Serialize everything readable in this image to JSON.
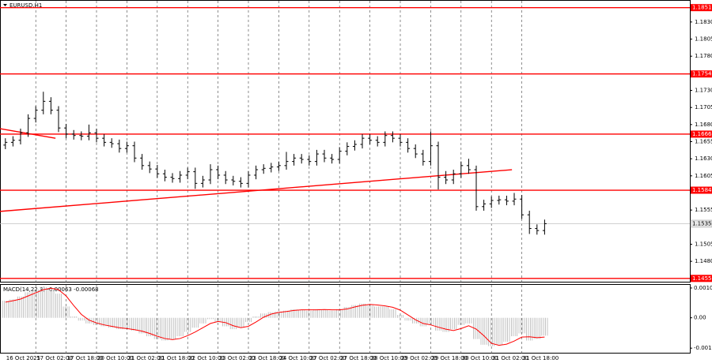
{
  "chart_data": [
    {
      "type": "candlestick",
      "title": "EURUSD,H1",
      "color": "#000000",
      "categories": [
        "16 Oct 2025",
        null,
        null,
        null,
        "17 Oct 02:00",
        null,
        null,
        null,
        "17 Oct 18:00",
        null,
        null,
        null,
        "20 Oct 10:00",
        null,
        null,
        null,
        "21 Oct 02:00",
        null,
        null,
        null,
        "21 Oct 18:00",
        null,
        null,
        null,
        "22 Oct 10:00",
        null,
        null,
        null,
        "23 Oct 02:00",
        null,
        null,
        null,
        "23 Oct 18:00",
        null,
        null,
        null,
        "24 Oct 10:00",
        null,
        null,
        null,
        "27 Oct 02:00",
        null,
        null,
        null,
        "27 Oct 18:00",
        null,
        null,
        null,
        "28 Oct 10:00",
        null,
        null,
        null,
        "29 Oct 02:00",
        null,
        null,
        null,
        "29 Oct 18:00",
        null,
        null,
        null,
        "30 Oct 10:00",
        null,
        null,
        null,
        "31 Oct 02:00",
        null,
        null,
        null,
        "31 Oct 18:00",
        null,
        null,
        null
      ],
      "open": [
        1.165,
        1.1654,
        1.1657,
        1.1668,
        1.1689,
        1.1701,
        1.1714,
        1.1701,
        1.1675,
        1.1666,
        1.1664,
        1.1663,
        1.1668,
        1.166,
        1.1654,
        1.1652,
        1.1645,
        1.1649,
        1.1631,
        1.162,
        1.1615,
        1.1608,
        1.1603,
        1.1601,
        1.1606,
        1.1611,
        1.1594,
        1.1599,
        1.1614,
        1.1606,
        1.1599,
        1.1597,
        1.1594,
        1.1606,
        1.1614,
        1.1616,
        1.1618,
        1.162,
        1.1626,
        1.1631,
        1.1629,
        1.1626,
        1.1637,
        1.1631,
        1.1629,
        1.1641,
        1.1648,
        1.1651,
        1.166,
        1.1657,
        1.1654,
        1.1664,
        1.166,
        1.1654,
        1.1645,
        1.1637,
        1.1626,
        1.1649,
        1.1603,
        1.1599,
        1.1608,
        1.162,
        1.1614,
        1.156,
        1.1564,
        1.1569,
        1.157,
        1.1568,
        1.1571,
        1.1548,
        1.1528,
        1.1525
      ],
      "high": [
        1.166,
        1.1663,
        1.1674,
        1.1695,
        1.1707,
        1.1728,
        1.172,
        1.1707,
        1.1681,
        1.1672,
        1.167,
        1.168,
        1.1674,
        1.1666,
        1.166,
        1.1658,
        1.1655,
        1.1655,
        1.1637,
        1.1626,
        1.1621,
        1.1614,
        1.1609,
        1.1612,
        1.1617,
        1.1617,
        1.1605,
        1.1622,
        1.162,
        1.1612,
        1.1605,
        1.1603,
        1.1612,
        1.162,
        1.1622,
        1.1624,
        1.1626,
        1.164,
        1.1637,
        1.1637,
        1.1635,
        1.1643,
        1.1643,
        1.1637,
        1.1647,
        1.1654,
        1.1657,
        1.1666,
        1.1666,
        1.1663,
        1.167,
        1.167,
        1.1666,
        1.166,
        1.1651,
        1.1643,
        1.167,
        1.1655,
        1.1612,
        1.1614,
        1.1626,
        1.163,
        1.162,
        1.157,
        1.1575,
        1.1576,
        1.1576,
        1.158,
        1.1577,
        1.1554,
        1.1534,
        1.1541
      ],
      "low": [
        1.1644,
        1.1648,
        1.1651,
        1.1662,
        1.1683,
        1.1695,
        1.1695,
        1.1669,
        1.166,
        1.1658,
        1.1657,
        1.1657,
        1.1654,
        1.1648,
        1.1646,
        1.1639,
        1.1639,
        1.1625,
        1.1614,
        1.1609,
        1.1602,
        1.1597,
        1.1595,
        1.1595,
        1.16,
        1.1586,
        1.1588,
        1.1593,
        1.16,
        1.1593,
        1.1591,
        1.1588,
        1.1588,
        1.16,
        1.1608,
        1.161,
        1.1612,
        1.1614,
        1.162,
        1.1623,
        1.162,
        1.162,
        1.1625,
        1.1623,
        1.1623,
        1.1635,
        1.1642,
        1.1645,
        1.1651,
        1.1648,
        1.1648,
        1.1654,
        1.1648,
        1.1639,
        1.1631,
        1.162,
        1.162,
        1.1585,
        1.1593,
        1.1593,
        1.1602,
        1.1608,
        1.1554,
        1.1554,
        1.1558,
        1.1563,
        1.1562,
        1.1562,
        1.1542,
        1.152,
        1.1519,
        1.1519
      ],
      "close": [
        1.1654,
        1.1657,
        1.1668,
        1.1689,
        1.1701,
        1.1714,
        1.1701,
        1.1675,
        1.1666,
        1.1664,
        1.1663,
        1.1668,
        1.166,
        1.1654,
        1.1652,
        1.1645,
        1.1649,
        1.1631,
        1.162,
        1.1615,
        1.1608,
        1.1603,
        1.1601,
        1.1606,
        1.1611,
        1.1594,
        1.1599,
        1.1614,
        1.1606,
        1.1599,
        1.1597,
        1.1594,
        1.1606,
        1.1614,
        1.1616,
        1.1618,
        1.162,
        1.1626,
        1.1631,
        1.1629,
        1.1626,
        1.1637,
        1.1631,
        1.1629,
        1.1641,
        1.1648,
        1.1651,
        1.166,
        1.1657,
        1.1654,
        1.1664,
        1.166,
        1.1654,
        1.1645,
        1.1637,
        1.1626,
        1.1649,
        1.1603,
        1.1599,
        1.1608,
        1.162,
        1.1614,
        1.156,
        1.1564,
        1.1569,
        1.157,
        1.1568,
        1.1571,
        1.1548,
        1.1528,
        1.1525,
        1.1535
      ],
      "ylim": [
        1.1449,
        1.1861
      ],
      "yticks": [
        {
          "value": 1.183,
          "label": "1.1830"
        },
        1.1805,
        {
          "value": 1.178,
          "label": "1.1780"
        },
        {
          "value": 1.173,
          "label": "1.1730"
        },
        1.1705,
        {
          "value": 1.168,
          "label": "1.1680"
        },
        1.1655,
        {
          "value": 1.163,
          "label": "1.1630"
        },
        1.1605,
        1.1555,
        1.1505,
        {
          "value": 1.148,
          "label": "1.1480"
        }
      ],
      "levels": [
        1.1851,
        1.1754,
        1.1666,
        1.1584,
        1.1455
      ],
      "level_color": "#ff0000",
      "current_price": 1.1535,
      "trendlines": [
        {
          "x": [
            -0.7,
            6.6
          ],
          "y": [
            1.1674,
            1.166
          ]
        },
        {
          "x": [
            -0.7,
            66.7
          ],
          "y": [
            1.1553,
            1.1614
          ]
        }
      ],
      "grid": true
    },
    {
      "type": "macd",
      "title": "MACD(14,22,3)",
      "last_values": [
        -0.00063,
        -0.00068
      ],
      "color": "#b4b4b4",
      "signal_color": "#ff0000",
      "values": [
        0.0006,
        0.00065,
        0.00075,
        0.0009,
        0.001,
        0.00108,
        0.00105,
        0.00085,
        0.0004,
        5e-05,
        -0.0001,
        -0.0002,
        -0.00025,
        -0.0003,
        -0.00035,
        -0.0004,
        -0.0004,
        -0.00045,
        -0.00055,
        -0.00065,
        -0.00075,
        -0.0008,
        -0.00075,
        -0.00065,
        -0.0005,
        -0.00035,
        -0.0002,
        -5e-05,
        -0.00015,
        -0.0003,
        -0.0004,
        -0.00035,
        -0.00015,
        5e-05,
        0.00015,
        0.0002,
        0.00022,
        0.00025,
        0.0003,
        0.00028,
        0.00025,
        0.0003,
        0.00028,
        0.00025,
        0.0003,
        0.00038,
        0.00045,
        0.0005,
        0.00045,
        0.0004,
        0.0004,
        0.0003,
        0.0001,
        -0.0001,
        -0.0002,
        -0.0003,
        -0.00025,
        -0.00045,
        -0.0005,
        -0.0004,
        -0.00025,
        -0.0002,
        -0.00075,
        -0.00095,
        -0.001,
        -0.00095,
        -0.00085,
        -0.00065,
        -0.00055,
        -0.0008,
        -0.00075,
        -0.00063
      ],
      "signal": [
        0.00055,
        0.0006,
        0.00066,
        0.00077,
        0.00088,
        0.00099,
        0.00104,
        0.00099,
        0.00077,
        0.00043,
        0.00012,
        -8e-05,
        -0.00018,
        -0.00025,
        -0.0003,
        -0.00035,
        -0.00038,
        -0.00042,
        -0.00047,
        -0.00055,
        -0.00065,
        -0.00073,
        -0.00077,
        -0.00073,
        -0.00063,
        -0.0005,
        -0.00035,
        -0.0002,
        -0.00013,
        -0.00017,
        -0.00028,
        -0.00035,
        -0.0003,
        -0.00015,
        2e-05,
        0.00013,
        0.00019,
        0.00022,
        0.00026,
        0.00028,
        0.00028,
        0.00028,
        0.00029,
        0.00028,
        0.00028,
        0.00031,
        0.00038,
        0.00044,
        0.00047,
        0.00045,
        0.00042,
        0.00037,
        0.00027,
        0.0001,
        -7e-05,
        -0.0002,
        -0.00025,
        -0.00033,
        -0.0004,
        -0.00045,
        -0.00038,
        -0.00028,
        -0.0004,
        -0.00063,
        -0.0009,
        -0.00097,
        -0.00093,
        -0.00082,
        -0.00068,
        -0.00067,
        -0.0007,
        -0.00068
      ],
      "ylim": [
        -0.00126,
        0.00116
      ],
      "yticks": [
        0.00105,
        {
          "value": 0,
          "label": "0.00"
        },
        -0.00107
      ]
    }
  ]
}
